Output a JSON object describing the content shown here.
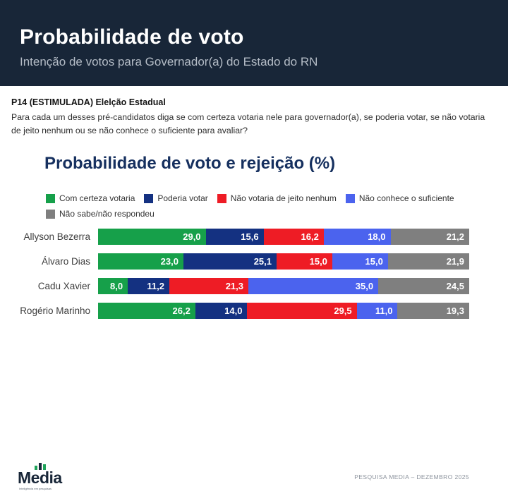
{
  "header": {
    "title": "Probabilidade de voto",
    "subtitle": "Intenção de votos para Governador(a) do Estado do RN"
  },
  "question": {
    "label": "P14 (ESTIMULADA) Elelção Estadual",
    "text": "Para cada um desses pré-candidatos diga se com certeza votaria nele para governador(a), se poderia votar, se não votaria de jeito nenhum ou se não conhece o suficiente para avaliar?"
  },
  "chart_data": {
    "type": "bar",
    "orientation": "horizontal-stacked",
    "title": "Probabilidade de voto e rejeição (%)",
    "legend_position": "top",
    "xlim": [
      0,
      100
    ],
    "value_decimal_separator": ",",
    "categories": [
      "Allyson Bezerra",
      "Álvaro Dias",
      "Cadu Xavier",
      "Rogério Marinho"
    ],
    "series": [
      {
        "name": "Com certeza votaria",
        "color": "#16a04a",
        "values": [
          29.0,
          23.0,
          8.0,
          26.2
        ]
      },
      {
        "name": "Poderia votar",
        "color": "#143181",
        "values": [
          15.6,
          25.1,
          11.2,
          14.0
        ]
      },
      {
        "name": "Não votaria de jeito nenhum",
        "color": "#ee1c25",
        "values": [
          16.2,
          15.0,
          21.3,
          29.5
        ]
      },
      {
        "name": "Não conhece o suficiente",
        "color": "#4b63ee",
        "values": [
          18.0,
          15.0,
          35.0,
          11.0
        ]
      },
      {
        "name": "Não sabe/não respondeu",
        "color": "#7f7f7f",
        "values": [
          21.2,
          21.9,
          24.5,
          19.3
        ]
      }
    ]
  },
  "colors": {
    "header_bg": "#182638",
    "chart_title": "#16305f"
  },
  "footer": {
    "logo_text": "Media",
    "logo_tagline": "Inteligência em pesquisas",
    "source": "PESQUISA MEDIA – DEZEMBRO 2025"
  }
}
